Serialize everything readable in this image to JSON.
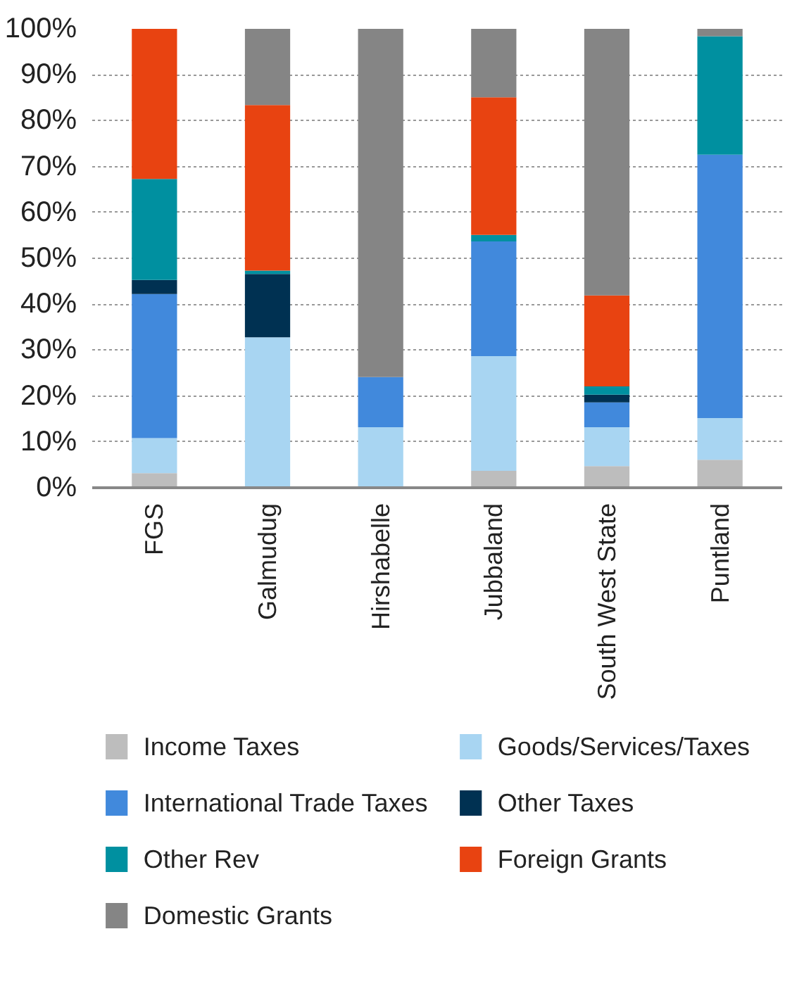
{
  "chart_data": {
    "type": "bar",
    "stacked": true,
    "categories": [
      "FGS",
      "Galmudug",
      "Hirshabelle",
      "Jubbaland",
      "South West State",
      "Puntland"
    ],
    "series": [
      {
        "name": "Income Taxes",
        "color": "#bdbdbd",
        "values": [
          3.2,
          0,
          0,
          3.7,
          4.7,
          6.1
        ]
      },
      {
        "name": "Goods/Services/Taxes",
        "color": "#a8d5f2",
        "values": [
          7.6,
          32.8,
          13.2,
          25,
          8.5,
          9.1
        ]
      },
      {
        "name": "International Trade Taxes",
        "color": "#4189dc",
        "values": [
          31.4,
          0,
          10.9,
          25,
          5.4,
          57.4
        ]
      },
      {
        "name": "Other Taxes",
        "color": "#003152",
        "values": [
          3.1,
          13.8,
          0,
          0,
          1.7,
          0
        ]
      },
      {
        "name": "Other Rev",
        "color": "#0090a0",
        "values": [
          22,
          0.7,
          0,
          1.4,
          1.8,
          25.8
        ]
      },
      {
        "name": "Foreign Grants",
        "color": "#e84311",
        "values": [
          32.7,
          36.1,
          0,
          30,
          19.8,
          0
        ]
      },
      {
        "name": "Domestic Grants",
        "color": "#858585",
        "values": [
          0,
          16.6,
          75.9,
          14.9,
          58.1,
          1.6
        ]
      }
    ],
    "ylim": [
      0,
      100
    ],
    "yticks": [
      {
        "value": 0,
        "label": "0%"
      },
      {
        "value": 10,
        "label": "10%"
      },
      {
        "value": 20,
        "label": "20%"
      },
      {
        "value": 30,
        "label": "30%"
      },
      {
        "value": 40,
        "label": "40%"
      },
      {
        "value": 50,
        "label": "50%"
      },
      {
        "value": 60,
        "label": "60%"
      },
      {
        "value": 70,
        "label": "70%"
      },
      {
        "value": 80,
        "label": "80%"
      },
      {
        "value": 90,
        "label": "90%"
      },
      {
        "value": 100,
        "label": "100%"
      }
    ],
    "grid": "y",
    "legend": "bottom"
  }
}
